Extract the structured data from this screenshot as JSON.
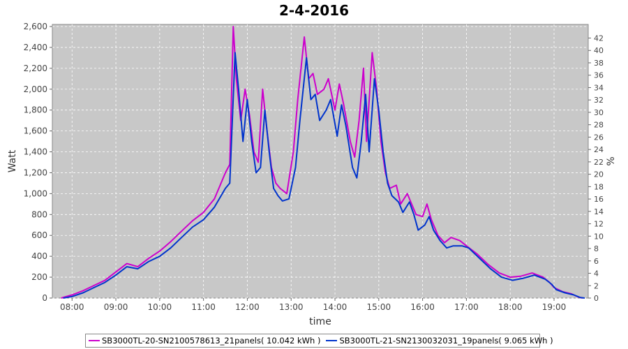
{
  "chart_data": {
    "type": "line",
    "title": "2-4-2016",
    "xlabel": "time",
    "ylabel": "Watt",
    "y2label": "%",
    "xlim": [
      7.55,
      19.78
    ],
    "ylim": [
      0,
      2620
    ],
    "y2lim": [
      0,
      44.2
    ],
    "x_ticks": [
      "08:00",
      "09:00",
      "10:00",
      "11:00",
      "12:00",
      "13:00",
      "14:00",
      "15:00",
      "16:00",
      "17:00",
      "18:00",
      "19:00"
    ],
    "y_ticks": [
      "0",
      "200",
      "400",
      "600",
      "800",
      "1,000",
      "1,200",
      "1,400",
      "1,600",
      "1,800",
      "2,000",
      "2,200",
      "2,400",
      "2,600"
    ],
    "y2_ticks": [
      "0",
      "2",
      "4",
      "6",
      "8",
      "10",
      "12",
      "14",
      "16",
      "18",
      "20",
      "22",
      "24",
      "26",
      "28",
      "30",
      "32",
      "34",
      "36",
      "38",
      "40",
      "42"
    ],
    "grid": true,
    "background": "#c8c8c8",
    "legend_position": "bottom",
    "series": [
      {
        "name": "SB3000TL-20-SN2100578613_21panels( 10.042 kWh )",
        "color": "#cc00cc",
        "points": [
          [
            7.75,
            0
          ],
          [
            8.0,
            30
          ],
          [
            8.25,
            70
          ],
          [
            8.5,
            120
          ],
          [
            8.75,
            170
          ],
          [
            9.0,
            250
          ],
          [
            9.25,
            330
          ],
          [
            9.5,
            300
          ],
          [
            9.75,
            380
          ],
          [
            10.0,
            450
          ],
          [
            10.25,
            540
          ],
          [
            10.5,
            640
          ],
          [
            10.75,
            740
          ],
          [
            11.0,
            820
          ],
          [
            11.25,
            950
          ],
          [
            11.5,
            1200
          ],
          [
            11.6,
            1280
          ],
          [
            11.68,
            2600
          ],
          [
            11.75,
            2100
          ],
          [
            11.85,
            1700
          ],
          [
            11.95,
            2000
          ],
          [
            12.05,
            1750
          ],
          [
            12.15,
            1400
          ],
          [
            12.25,
            1300
          ],
          [
            12.35,
            2000
          ],
          [
            12.45,
            1600
          ],
          [
            12.55,
            1250
          ],
          [
            12.65,
            1100
          ],
          [
            12.75,
            1050
          ],
          [
            12.9,
            1000
          ],
          [
            13.05,
            1400
          ],
          [
            13.15,
            1900
          ],
          [
            13.3,
            2500
          ],
          [
            13.4,
            2100
          ],
          [
            13.5,
            2150
          ],
          [
            13.6,
            1950
          ],
          [
            13.75,
            2000
          ],
          [
            13.85,
            2100
          ],
          [
            14.0,
            1800
          ],
          [
            14.1,
            2050
          ],
          [
            14.2,
            1850
          ],
          [
            14.35,
            1500
          ],
          [
            14.45,
            1350
          ],
          [
            14.55,
            1700
          ],
          [
            14.65,
            2200
          ],
          [
            14.72,
            1500
          ],
          [
            14.85,
            2350
          ],
          [
            14.95,
            2000
          ],
          [
            15.05,
            1500
          ],
          [
            15.15,
            1200
          ],
          [
            15.25,
            1050
          ],
          [
            15.4,
            1080
          ],
          [
            15.5,
            900
          ],
          [
            15.65,
            1000
          ],
          [
            15.75,
            900
          ],
          [
            15.85,
            800
          ],
          [
            16.0,
            780
          ],
          [
            16.1,
            900
          ],
          [
            16.2,
            750
          ],
          [
            16.35,
            600
          ],
          [
            16.5,
            530
          ],
          [
            16.65,
            580
          ],
          [
            16.85,
            550
          ],
          [
            17.0,
            500
          ],
          [
            17.25,
            420
          ],
          [
            17.5,
            320
          ],
          [
            17.75,
            240
          ],
          [
            18.0,
            200
          ],
          [
            18.25,
            210
          ],
          [
            18.5,
            240
          ],
          [
            18.75,
            200
          ],
          [
            18.9,
            150
          ],
          [
            19.0,
            100
          ],
          [
            19.2,
            60
          ],
          [
            19.4,
            40
          ],
          [
            19.55,
            10
          ],
          [
            19.65,
            0
          ]
        ]
      },
      {
        "name": "SB3000TL-21-SN2130032031_19panels( 9.065 kWh )",
        "color": "#0033cc",
        "points": [
          [
            7.8,
            0
          ],
          [
            8.0,
            15
          ],
          [
            8.25,
            50
          ],
          [
            8.5,
            100
          ],
          [
            8.75,
            150
          ],
          [
            9.0,
            220
          ],
          [
            9.25,
            300
          ],
          [
            9.5,
            280
          ],
          [
            9.75,
            350
          ],
          [
            10.0,
            400
          ],
          [
            10.25,
            480
          ],
          [
            10.5,
            580
          ],
          [
            10.75,
            680
          ],
          [
            11.0,
            750
          ],
          [
            11.25,
            870
          ],
          [
            11.5,
            1050
          ],
          [
            11.6,
            1100
          ],
          [
            11.72,
            2350
          ],
          [
            11.8,
            2000
          ],
          [
            11.9,
            1500
          ],
          [
            12.0,
            1900
          ],
          [
            12.1,
            1500
          ],
          [
            12.2,
            1200
          ],
          [
            12.3,
            1250
          ],
          [
            12.4,
            1800
          ],
          [
            12.5,
            1400
          ],
          [
            12.6,
            1050
          ],
          [
            12.7,
            980
          ],
          [
            12.8,
            930
          ],
          [
            12.95,
            950
          ],
          [
            13.1,
            1250
          ],
          [
            13.2,
            1700
          ],
          [
            13.35,
            2300
          ],
          [
            13.45,
            1900
          ],
          [
            13.55,
            1950
          ],
          [
            13.65,
            1700
          ],
          [
            13.8,
            1800
          ],
          [
            13.9,
            1900
          ],
          [
            14.05,
            1550
          ],
          [
            14.15,
            1850
          ],
          [
            14.25,
            1650
          ],
          [
            14.4,
            1250
          ],
          [
            14.5,
            1150
          ],
          [
            14.6,
            1500
          ],
          [
            14.7,
            1950
          ],
          [
            14.78,
            1400
          ],
          [
            14.9,
            2100
          ],
          [
            15.0,
            1800
          ],
          [
            15.1,
            1400
          ],
          [
            15.2,
            1100
          ],
          [
            15.3,
            980
          ],
          [
            15.45,
            920
          ],
          [
            15.55,
            820
          ],
          [
            15.7,
            920
          ],
          [
            15.8,
            800
          ],
          [
            15.9,
            650
          ],
          [
            16.05,
            700
          ],
          [
            16.15,
            780
          ],
          [
            16.25,
            650
          ],
          [
            16.4,
            550
          ],
          [
            16.55,
            480
          ],
          [
            16.7,
            500
          ],
          [
            16.9,
            500
          ],
          [
            17.05,
            480
          ],
          [
            17.3,
            380
          ],
          [
            17.55,
            280
          ],
          [
            17.8,
            200
          ],
          [
            18.05,
            170
          ],
          [
            18.3,
            190
          ],
          [
            18.55,
            220
          ],
          [
            18.8,
            180
          ],
          [
            18.95,
            130
          ],
          [
            19.05,
            80
          ],
          [
            19.25,
            50
          ],
          [
            19.45,
            30
          ],
          [
            19.6,
            5
          ],
          [
            19.7,
            0
          ]
        ]
      }
    ]
  }
}
